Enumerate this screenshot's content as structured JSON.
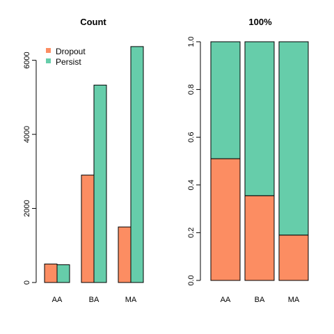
{
  "chart_data": [
    {
      "type": "bar",
      "mode": "grouped",
      "title": "Count",
      "categories": [
        "AA",
        "BA",
        "MA"
      ],
      "series": [
        {
          "name": "Dropout",
          "values": [
            500,
            2900,
            1500
          ],
          "color": "#FC8D62"
        },
        {
          "name": "Persist",
          "values": [
            480,
            5330,
            6370
          ],
          "color": "#66CDAA"
        }
      ],
      "ylim": [
        0,
        6500
      ],
      "yticks": [
        0,
        2000,
        4000,
        6000
      ],
      "legend": {
        "position": "top-left",
        "entries": [
          "Dropout",
          "Persist"
        ]
      },
      "xlabel": "",
      "ylabel": "",
      "grid": false
    },
    {
      "type": "bar",
      "mode": "stacked",
      "title": "100%",
      "categories": [
        "AA",
        "BA",
        "MA"
      ],
      "series": [
        {
          "name": "Dropout",
          "values": [
            0.51,
            0.355,
            0.19
          ],
          "color": "#FC8D62"
        },
        {
          "name": "Persist",
          "values": [
            0.49,
            0.645,
            0.81
          ],
          "color": "#66CDAA"
        }
      ],
      "ylim": [
        0,
        1
      ],
      "yticks": [
        "0.0",
        "0.2",
        "0.4",
        "0.6",
        "0.8",
        "1.0"
      ],
      "xlabel": "",
      "ylabel": "",
      "grid": false
    }
  ]
}
